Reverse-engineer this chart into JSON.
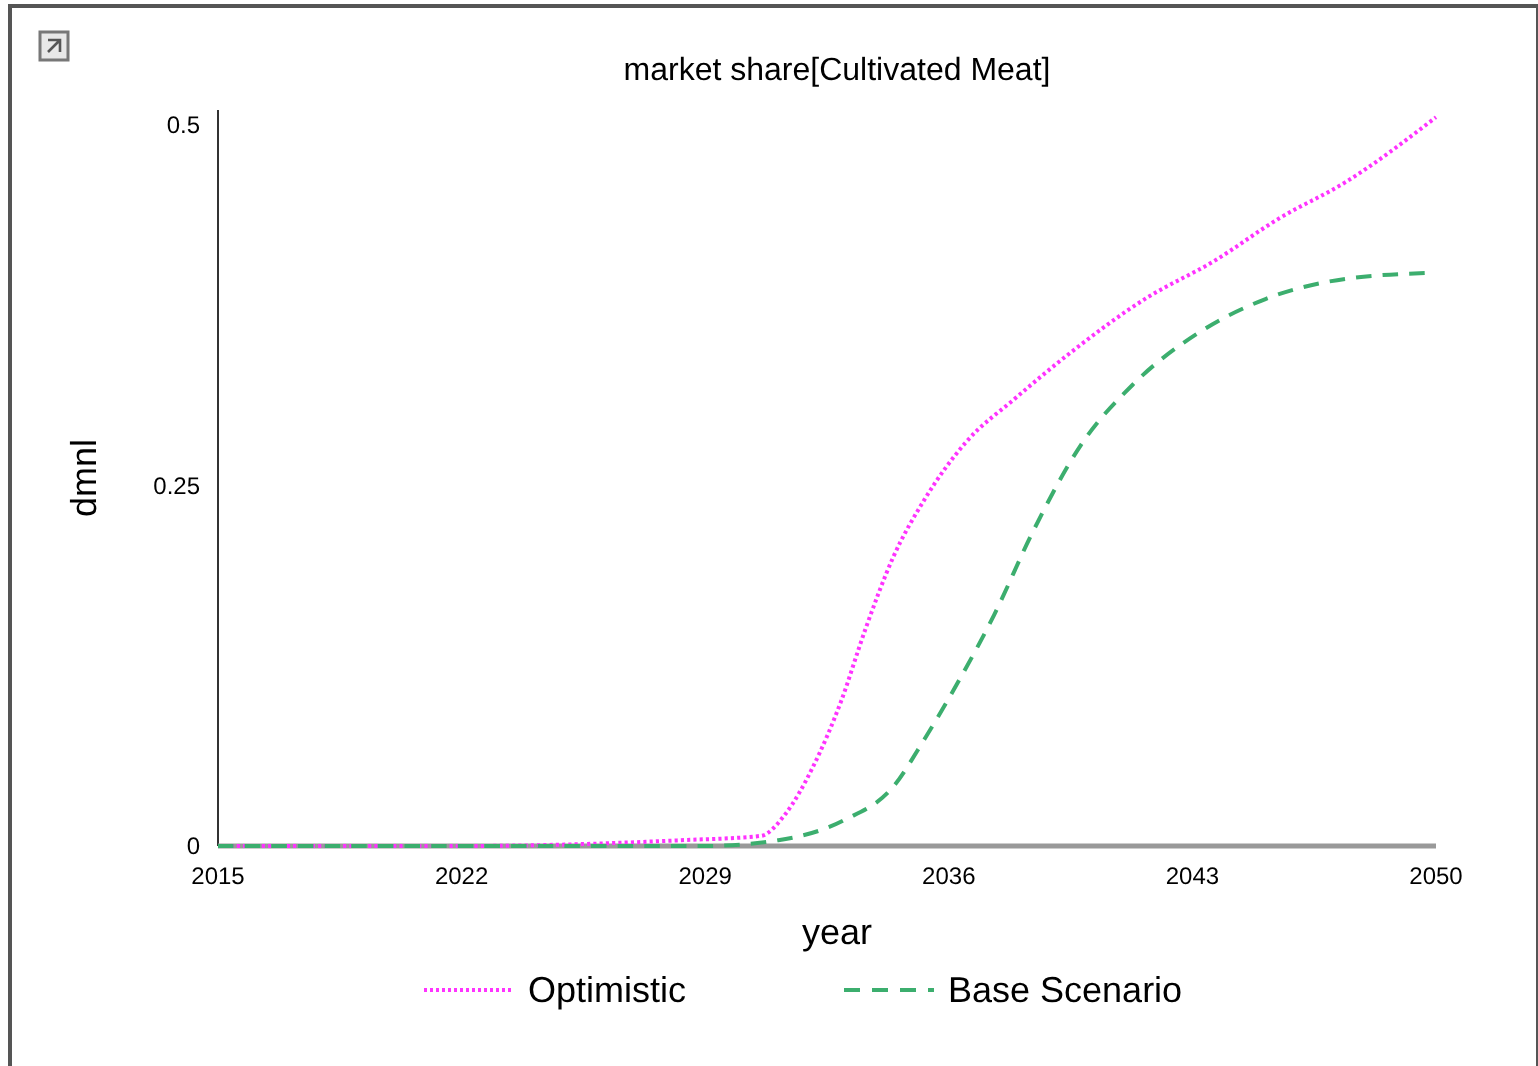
{
  "chart_data": {
    "type": "line",
    "title": "market share[Cultivated Meat]",
    "xlabel": "year",
    "ylabel": "dmnl",
    "xlim": [
      2015,
      2050
    ],
    "xticks": [
      2015,
      2022,
      2029,
      2036,
      2043,
      2050
    ],
    "ylim": [
      0,
      0.51
    ],
    "yticks": [
      0,
      0.25,
      0.5
    ],
    "grid": false,
    "legend": "bottom",
    "series": [
      {
        "name": "Optimistic",
        "color": "#ff33ff",
        "line_style": "dotted",
        "x": [
          2015,
          2022,
          2028.3,
          2030.6,
          2031.3,
          2032.1,
          2032.9,
          2033.6,
          2034.4,
          2035.3,
          2036.5,
          2037.9,
          2039.4,
          2041.7,
          2043.6,
          2045.5,
          2047.4,
          2050
        ],
        "values": [
          0,
          0,
          0.004,
          0.007,
          0.022,
          0.055,
          0.1,
          0.15,
          0.2,
          0.24,
          0.28,
          0.31,
          0.34,
          0.38,
          0.405,
          0.435,
          0.46,
          0.505
        ]
      },
      {
        "name": "Base Scenario",
        "color": "#3cae6e",
        "line_style": "dashed",
        "x": [
          2015,
          2022,
          2029,
          2031.1,
          2033.0,
          2034.4,
          2035.3,
          2036.3,
          2037.3,
          2038.4,
          2039.8,
          2041.3,
          2043.2,
          2045.1,
          2047.4,
          2049.7
        ],
        "values": [
          0,
          0,
          0,
          0.004,
          0.018,
          0.041,
          0.074,
          0.115,
          0.16,
          0.217,
          0.278,
          0.32,
          0.356,
          0.379,
          0.393,
          0.397
        ]
      }
    ]
  }
}
